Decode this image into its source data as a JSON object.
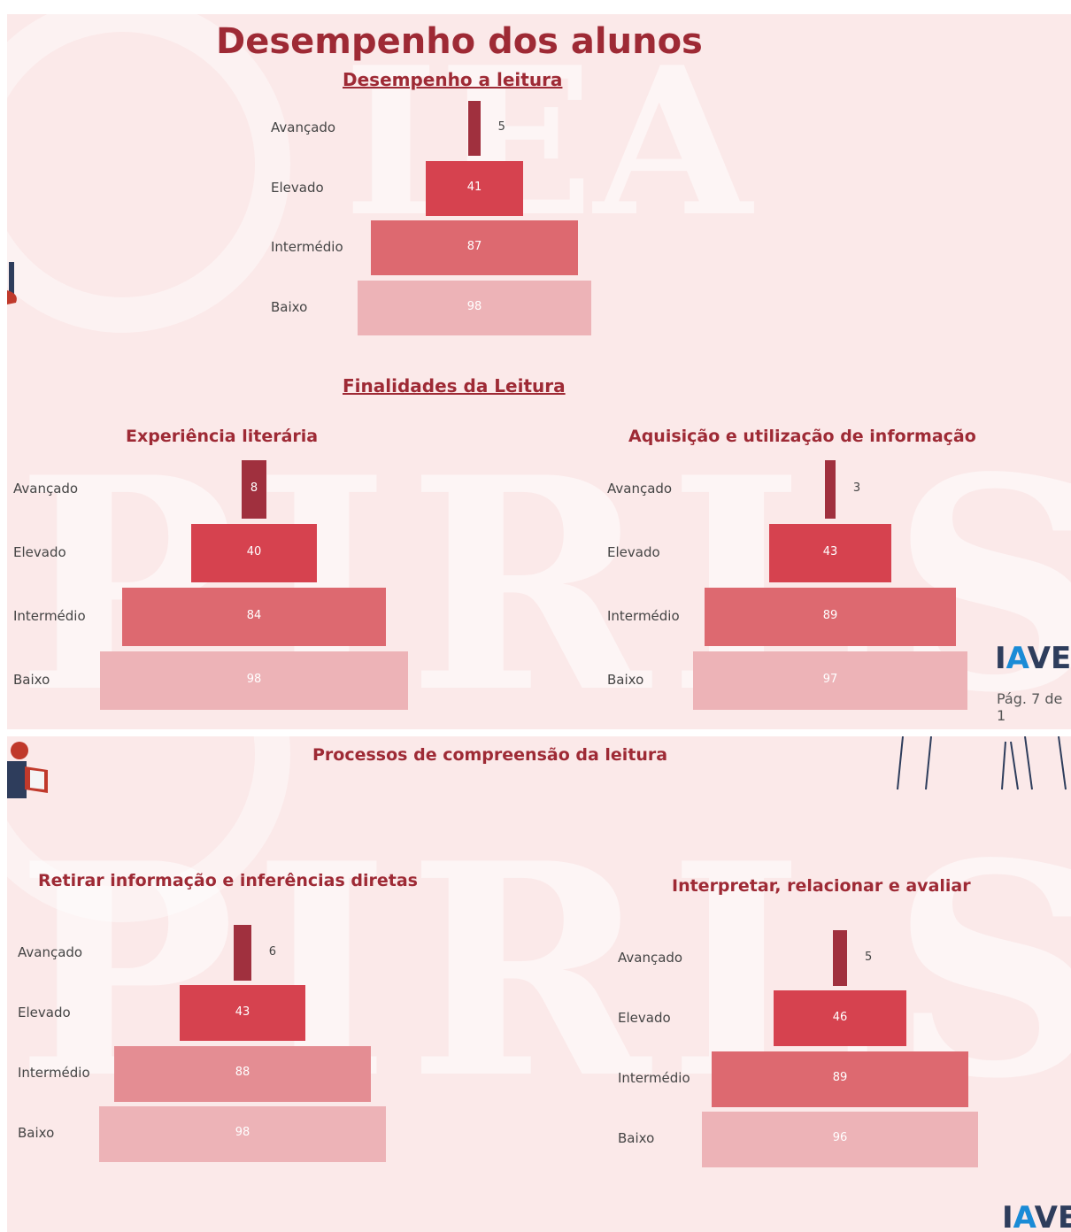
{
  "page_title": "Desempenho dos alunos",
  "section_finalidades": "Finalidades da Leitura",
  "section_processos": "Processos de compreensão da leitura",
  "watermark_top": "IEA",
  "watermark_bottom": "PIRLS",
  "logo": {
    "prefix": "I",
    "accent": "A",
    "suffix": "VE"
  },
  "page_indicator": "Pág. 7 de 1",
  "colors": {
    "avancado": "#a0303e",
    "elevado": "#d6424f",
    "intermedio": "#dd6970",
    "intermedio_light": "#e48d93",
    "baixo": "#edb3b7",
    "title": "#9e2a35"
  },
  "chart_data": [
    {
      "type": "bar",
      "title": "Desempenho a leitura",
      "categories": [
        "Avançado",
        "Elevado",
        "Intermédio",
        "Baixo"
      ],
      "values": [
        5,
        41,
        87,
        98
      ],
      "xlim": [
        0,
        100
      ]
    },
    {
      "type": "bar",
      "title": "Experiência literária",
      "categories": [
        "Avançado",
        "Elevado",
        "Intermédio",
        "Baixo"
      ],
      "values": [
        8,
        40,
        84,
        98
      ],
      "xlim": [
        0,
        100
      ]
    },
    {
      "type": "bar",
      "title": "Aquisição e utilização de informação",
      "categories": [
        "Avançado",
        "Elevado",
        "Intermédio",
        "Baixo"
      ],
      "values": [
        3,
        43,
        89,
        97
      ],
      "xlim": [
        0,
        100
      ]
    },
    {
      "type": "bar",
      "title": "Retirar informação e inferências diretas",
      "categories": [
        "Avançado",
        "Elevado",
        "Intermédio",
        "Baixo"
      ],
      "values": [
        6,
        43,
        88,
        98
      ],
      "xlim": [
        0,
        100
      ]
    },
    {
      "type": "bar",
      "title": "Interpretar, relacionar e avaliar",
      "categories": [
        "Avançado",
        "Elevado",
        "Intermédio",
        "Baixo"
      ],
      "values": [
        5,
        46,
        89,
        96
      ],
      "xlim": [
        0,
        100
      ]
    }
  ]
}
